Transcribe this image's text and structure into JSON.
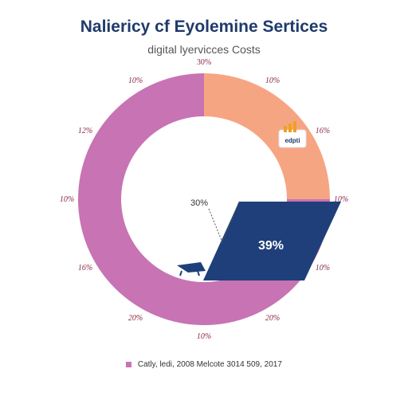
{
  "chart_data": {
    "type": "pie",
    "title": "Naliericy cf Eyolemine Sertices",
    "subtitle": "digital lyervicces Costs",
    "slices": [
      {
        "value": 25,
        "color": "#f6a582"
      },
      {
        "value": 75,
        "color": "#c873b3"
      }
    ],
    "highlight": {
      "label": "39%",
      "color": "#1f3f7a"
    },
    "callout": "30%",
    "ring_labels": [
      "30%",
      "10%",
      "16%",
      "10%",
      "10%",
      "20%",
      "10%",
      "20%",
      "16%",
      "10%",
      "12%",
      "10%"
    ],
    "legend": {
      "label": "Catly, ledi, 2008 Melcote 3014 509, 2017",
      "color": "#c873b3"
    },
    "badge_label": "edpti"
  }
}
